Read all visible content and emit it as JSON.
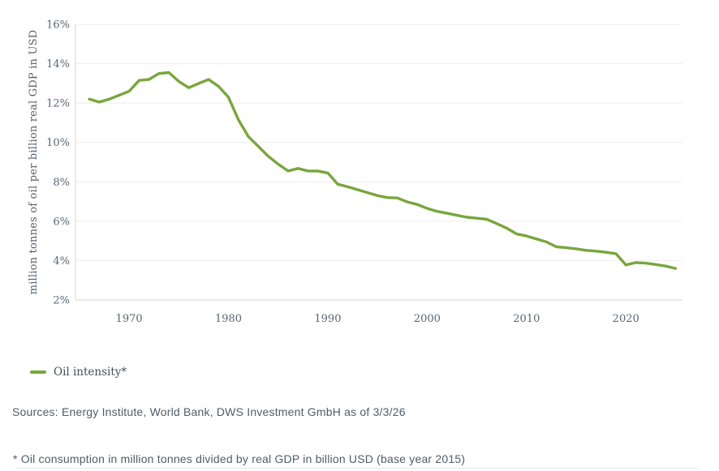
{
  "colors": {
    "line": "#78A63C",
    "grid": "#EDEDED",
    "axis": "#D7D7D5",
    "tick_text": "#5A6572",
    "body_text": "#505C66"
  },
  "page": {
    "legend": {
      "label": "Oil intensity*",
      "swatch_color": "#78A63C"
    },
    "sources_line": "Sources: Energy Institute, World Bank, DWS Investment GmbH as of 3/3/26",
    "footnote": "* Oil consumption in million tonnes divided by real GDP in billion USD (base year 2015)"
  },
  "chart_data": {
    "type": "line",
    "title": "",
    "xlabel": "",
    "ylabel": "million tonnes of oil per billion real GDP in USD",
    "y_tick_suffix": "%",
    "ylim": [
      2,
      16
    ],
    "xlim": [
      1964.6,
      2025.7
    ],
    "y_ticks": [
      2,
      4,
      6,
      8,
      10,
      12,
      14,
      16
    ],
    "x_ticks": [
      1970,
      1980,
      1990,
      2000,
      2010,
      2020
    ],
    "grid": true,
    "legend_position": "bottom-left",
    "series": [
      {
        "name": "Oil intensity*",
        "color": "#78A63C",
        "years": [
          1966,
          1967,
          1968,
          1969,
          1970,
          1971,
          1972,
          1973,
          1974,
          1975,
          1976,
          1977,
          1978,
          1979,
          1980,
          1981,
          1982,
          1983,
          1984,
          1985,
          1986,
          1987,
          1988,
          1989,
          1990,
          1991,
          1992,
          1993,
          1994,
          1995,
          1996,
          1997,
          1998,
          1999,
          2000,
          2001,
          2002,
          2003,
          2004,
          2005,
          2006,
          2007,
          2008,
          2009,
          2010,
          2011,
          2012,
          2013,
          2014,
          2015,
          2016,
          2017,
          2018,
          2019,
          2020,
          2021,
          2022,
          2023,
          2024,
          2025
        ],
        "values": [
          12.2,
          12.05,
          12.2,
          12.4,
          12.6,
          13.15,
          13.2,
          13.5,
          13.55,
          13.1,
          12.78,
          13.0,
          13.2,
          12.85,
          12.3,
          11.15,
          10.3,
          9.8,
          9.3,
          8.9,
          8.55,
          8.68,
          8.55,
          8.55,
          8.45,
          7.88,
          7.75,
          7.6,
          7.45,
          7.3,
          7.2,
          7.18,
          6.98,
          6.85,
          6.65,
          6.5,
          6.4,
          6.3,
          6.2,
          6.15,
          6.1,
          5.88,
          5.65,
          5.35,
          5.25,
          5.1,
          4.95,
          4.7,
          4.65,
          4.6,
          4.52,
          4.48,
          4.42,
          4.35,
          3.78,
          3.9,
          3.87,
          3.8,
          3.72,
          3.6
        ]
      }
    ]
  }
}
